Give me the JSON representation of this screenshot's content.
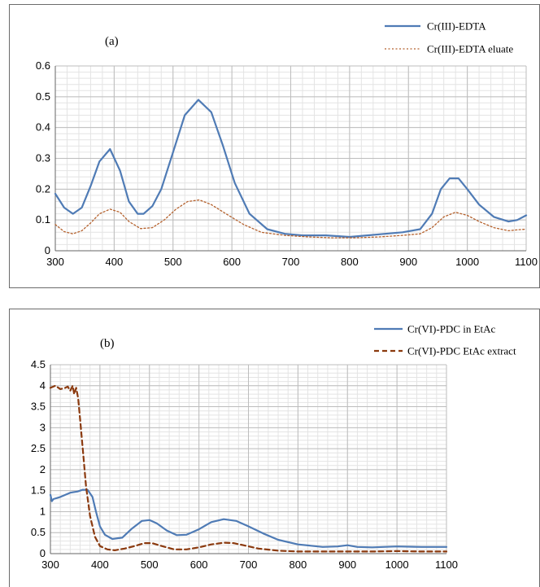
{
  "chart_data": [
    {
      "type": "line",
      "panel_label": "(a)",
      "title": "",
      "xlabel": "",
      "ylabel": "",
      "xlim": [
        300,
        1100
      ],
      "ylim": [
        0,
        0.6
      ],
      "xticks": [
        300,
        400,
        500,
        600,
        700,
        800,
        900,
        1000,
        1100
      ],
      "yticks": [
        0,
        0.1,
        0.2,
        0.3,
        0.4,
        0.5,
        0.6
      ],
      "ytick_labels": [
        "0",
        "0.1",
        "0.2",
        "0.3",
        "0.4",
        "0.5",
        "0.6"
      ],
      "grid": true,
      "legend_position": "top-right",
      "series": [
        {
          "name": "Cr(III)-EDTA",
          "style": "solid",
          "color": "#4f7bb5",
          "x": [
            300,
            315,
            330,
            345,
            360,
            375,
            393,
            410,
            425,
            440,
            450,
            465,
            480,
            500,
            520,
            543,
            565,
            585,
            605,
            630,
            660,
            690,
            720,
            760,
            800,
            830,
            860,
            890,
            920,
            940,
            955,
            970,
            985,
            1000,
            1020,
            1045,
            1070,
            1085,
            1100
          ],
          "y": [
            0.185,
            0.14,
            0.12,
            0.14,
            0.21,
            0.29,
            0.33,
            0.26,
            0.16,
            0.12,
            0.12,
            0.145,
            0.2,
            0.32,
            0.44,
            0.49,
            0.45,
            0.34,
            0.22,
            0.12,
            0.07,
            0.055,
            0.05,
            0.05,
            0.045,
            0.05,
            0.055,
            0.06,
            0.07,
            0.12,
            0.2,
            0.235,
            0.235,
            0.2,
            0.15,
            0.11,
            0.095,
            0.1,
            0.115
          ]
        },
        {
          "name": "Cr(III)-EDTA eluate",
          "style": "dotted",
          "color": "#b5622e",
          "x": [
            300,
            315,
            330,
            345,
            360,
            375,
            393,
            410,
            425,
            445,
            465,
            485,
            505,
            525,
            545,
            565,
            590,
            620,
            650,
            690,
            730,
            770,
            810,
            850,
            890,
            920,
            940,
            960,
            980,
            1000,
            1020,
            1045,
            1070,
            1085,
            1100
          ],
          "y": [
            0.085,
            0.062,
            0.055,
            0.065,
            0.09,
            0.12,
            0.135,
            0.125,
            0.095,
            0.072,
            0.075,
            0.1,
            0.135,
            0.16,
            0.165,
            0.15,
            0.12,
            0.085,
            0.06,
            0.05,
            0.045,
            0.042,
            0.042,
            0.045,
            0.05,
            0.055,
            0.075,
            0.11,
            0.125,
            0.115,
            0.095,
            0.075,
            0.065,
            0.068,
            0.07
          ]
        }
      ]
    },
    {
      "type": "line",
      "panel_label": "(b)",
      "title": "",
      "xlabel": "",
      "ylabel": "",
      "xlim": [
        300,
        1100
      ],
      "ylim": [
        0,
        4.5
      ],
      "xticks": [
        300,
        400,
        500,
        600,
        700,
        800,
        900,
        1000,
        1100
      ],
      "yticks": [
        0,
        0.5,
        1,
        1.5,
        2,
        2.5,
        3,
        3.5,
        4,
        4.5
      ],
      "ytick_labels": [
        "0",
        "0.5",
        "1",
        "1.5",
        "2",
        "2.5",
        "3",
        "3.5",
        "4",
        "4.5"
      ],
      "grid": true,
      "legend_position": "top-right",
      "series": [
        {
          "name": "Cr(VI)-PDC in EtAc",
          "style": "solid",
          "color": "#4f7bb5",
          "x": [
            300,
            303,
            306,
            320,
            340,
            355,
            365,
            375,
            385,
            392,
            400,
            410,
            425,
            445,
            465,
            485,
            500,
            515,
            535,
            555,
            575,
            600,
            625,
            650,
            675,
            700,
            730,
            760,
            800,
            850,
            880,
            900,
            920,
            950,
            1000,
            1050,
            1100
          ],
          "y": [
            1.4,
            1.25,
            1.3,
            1.35,
            1.45,
            1.48,
            1.52,
            1.52,
            1.35,
            1.0,
            0.65,
            0.45,
            0.35,
            0.38,
            0.6,
            0.78,
            0.8,
            0.72,
            0.55,
            0.44,
            0.45,
            0.58,
            0.75,
            0.82,
            0.78,
            0.65,
            0.48,
            0.33,
            0.22,
            0.16,
            0.17,
            0.2,
            0.16,
            0.15,
            0.17,
            0.16,
            0.16
          ]
        },
        {
          "name": "Cr(VI)-PDC EtAc extract",
          "style": "dashed",
          "color": "#8b3a0f",
          "x": [
            300,
            310,
            320,
            330,
            335,
            340,
            345,
            348,
            352,
            356,
            360,
            366,
            372,
            380,
            390,
            400,
            415,
            430,
            450,
            470,
            490,
            505,
            525,
            550,
            575,
            600,
            625,
            650,
            670,
            690,
            720,
            760,
            800,
            850,
            900,
            950,
            1000,
            1050,
            1100
          ],
          "y": [
            3.95,
            4.0,
            3.92,
            3.95,
            3.98,
            3.88,
            4.0,
            3.8,
            3.95,
            3.7,
            3.2,
            2.4,
            1.6,
            0.9,
            0.4,
            0.18,
            0.1,
            0.08,
            0.12,
            0.18,
            0.25,
            0.25,
            0.18,
            0.1,
            0.1,
            0.15,
            0.22,
            0.26,
            0.25,
            0.2,
            0.12,
            0.07,
            0.05,
            0.05,
            0.05,
            0.05,
            0.06,
            0.05,
            0.05
          ]
        }
      ]
    }
  ]
}
